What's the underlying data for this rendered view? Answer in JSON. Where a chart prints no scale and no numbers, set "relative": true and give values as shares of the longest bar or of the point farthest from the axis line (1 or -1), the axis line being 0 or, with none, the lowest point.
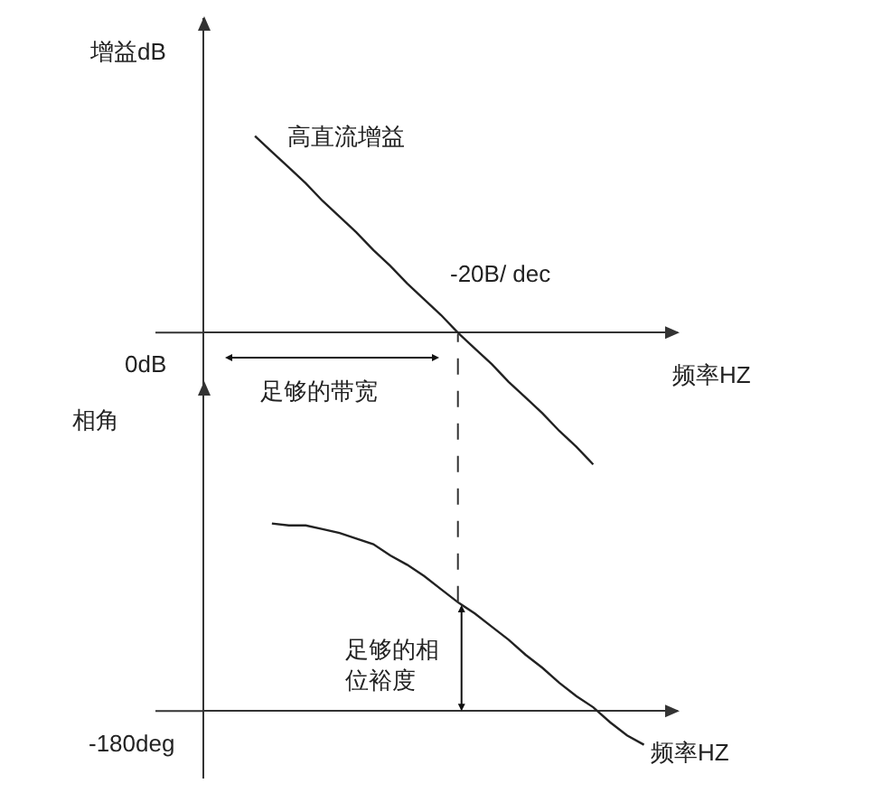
{
  "chart_data": [
    {
      "type": "line",
      "ylabel": "增益dB",
      "xlabel": "频率HZ",
      "relative": true,
      "categories": [
        null,
        null,
        null,
        null,
        null,
        null,
        null,
        null,
        null,
        null,
        null,
        null,
        null,
        null,
        null,
        null,
        null,
        null,
        null,
        null,
        null,
        null,
        null,
        null,
        null,
        null,
        null,
        null,
        null
      ],
      "values": [
        null,
        null,
        null,
        1,
        0.92,
        0.84,
        0.76,
        0.67,
        0.59,
        0.51,
        0.42,
        0.34,
        0.25,
        0.17,
        0.09,
        0,
        -0.08,
        -0.16,
        -0.25,
        -0.33,
        -0.41,
        -0.5,
        -0.58,
        -0.67,
        null,
        null,
        null,
        null,
        null
      ],
      "color": "#222222",
      "annotations": [
        "0dB",
        "高直流增益",
        "-20B/ dec",
        "足够的带宽"
      ]
    },
    {
      "type": "line",
      "ylabel": "相角",
      "xlabel": "频率HZ",
      "relative": true,
      "categories": [
        null,
        null,
        null,
        null,
        null,
        null,
        null,
        null,
        null,
        null,
        null,
        null,
        null,
        null,
        null,
        null,
        null,
        null,
        null,
        null,
        null,
        null,
        null,
        null,
        null,
        null,
        null,
        null,
        null
      ],
      "values": [
        null,
        null,
        null,
        null,
        1,
        0.99,
        0.99,
        0.97,
        0.95,
        0.92,
        0.89,
        0.83,
        0.78,
        0.72,
        0.65,
        0.58,
        0.52,
        0.45,
        0.38,
        0.3,
        0.23,
        0.15,
        0.08,
        0.02,
        -0.06,
        -0.13,
        -0.18,
        null,
        null
      ],
      "color": "#222222",
      "annotations": [
        "足够的相位裕度",
        "-180deg"
      ]
    }
  ]
}
